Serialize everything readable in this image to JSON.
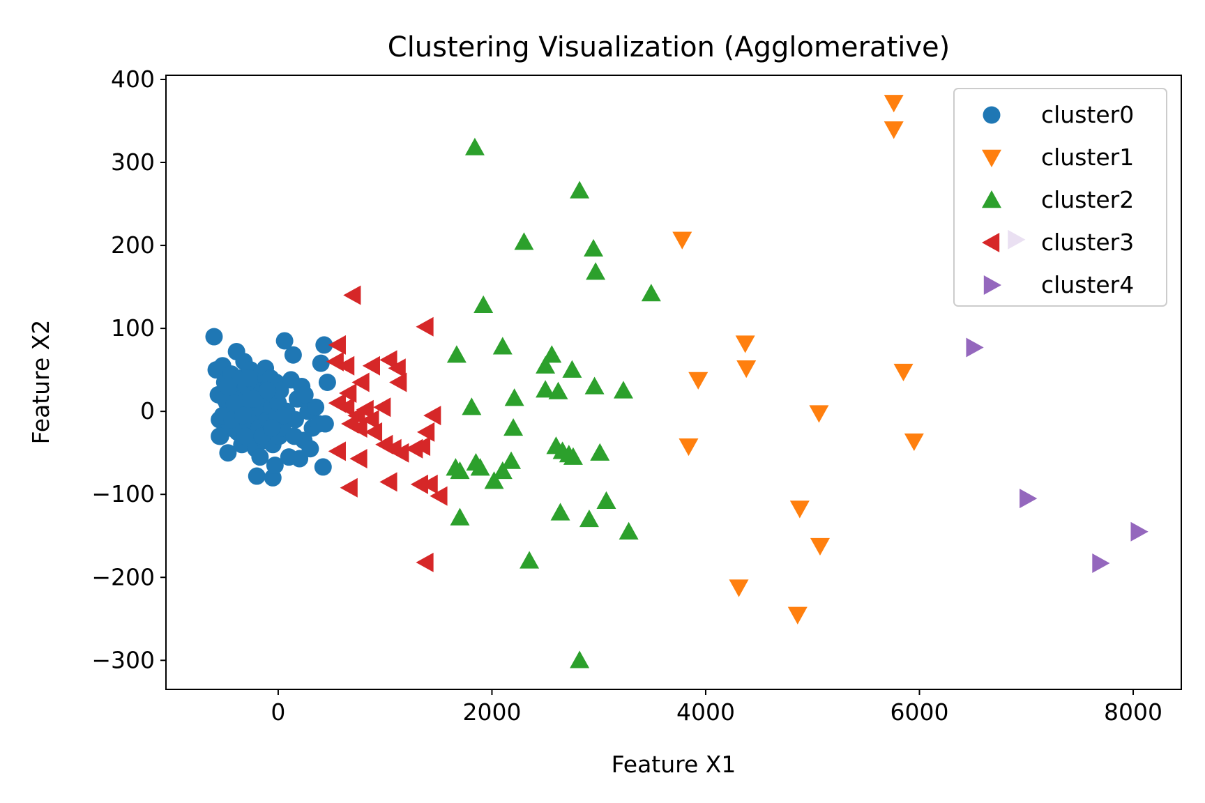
{
  "chart_data": {
    "type": "scatter",
    "title": "Clustering Visualization (Agglomerative)",
    "xlabel": "Feature X1",
    "ylabel": "Feature X2",
    "xlim": [
      -1050,
      8450
    ],
    "ylim": [
      -335,
      405
    ],
    "xticks": [
      0,
      2000,
      4000,
      6000,
      8000
    ],
    "xtick_labels": [
      "0",
      "2000",
      "4000",
      "6000",
      "8000"
    ],
    "yticks": [
      400,
      300,
      200,
      100,
      0,
      -100,
      -200,
      -300
    ],
    "ytick_labels": [
      "400",
      "300",
      "200",
      "100",
      "0",
      "−100",
      "−200",
      "−300"
    ],
    "grid": false,
    "legend_position": "top-right",
    "series": [
      {
        "name": "cluster0",
        "marker": "circle",
        "color": "#1f77b4",
        "points": [
          [
            -600,
            90
          ],
          [
            -580,
            50
          ],
          [
            -560,
            20
          ],
          [
            -550,
            -10
          ],
          [
            -540,
            -30
          ],
          [
            -520,
            55
          ],
          [
            -500,
            35
          ],
          [
            -480,
            10
          ],
          [
            -470,
            -50
          ],
          [
            -460,
            -20
          ],
          [
            -440,
            45
          ],
          [
            -420,
            25
          ],
          [
            -400,
            0
          ],
          [
            -390,
            72
          ],
          [
            -380,
            -25
          ],
          [
            -360,
            40
          ],
          [
            -350,
            15
          ],
          [
            -340,
            -40
          ],
          [
            -320,
            60
          ],
          [
            -300,
            30
          ],
          [
            -290,
            5
          ],
          [
            -280,
            -15
          ],
          [
            -260,
            50
          ],
          [
            -250,
            20
          ],
          [
            -240,
            -30
          ],
          [
            -220,
            -5
          ],
          [
            -210,
            -45
          ],
          [
            -200,
            35
          ],
          [
            -190,
            10
          ],
          [
            -180,
            -20
          ],
          [
            -170,
            -55
          ],
          [
            -160,
            45
          ],
          [
            -150,
            25
          ],
          [
            -140,
            0
          ],
          [
            -130,
            -35
          ],
          [
            -120,
            52
          ],
          [
            -110,
            15
          ],
          [
            -100,
            -10
          ],
          [
            -90,
            30
          ],
          [
            -80,
            -25
          ],
          [
            -70,
            40
          ],
          [
            -60,
            5
          ],
          [
            -50,
            -40
          ],
          [
            -40,
            20
          ],
          [
            -30,
            -15
          ],
          [
            -20,
            35
          ],
          [
            -10,
            -5
          ],
          [
            0,
            10
          ],
          [
            10,
            -30
          ],
          [
            20,
            25
          ],
          [
            40,
            -20
          ],
          [
            60,
            85
          ],
          [
            80,
            0
          ],
          [
            100,
            -55
          ],
          [
            120,
            38
          ],
          [
            140,
            68
          ],
          [
            160,
            -10
          ],
          [
            180,
            15
          ],
          [
            200,
            -57
          ],
          [
            220,
            30
          ],
          [
            240,
            -35
          ],
          [
            280,
            0
          ],
          [
            300,
            -45
          ],
          [
            320,
            -20
          ],
          [
            350,
            5
          ],
          [
            380,
            -15
          ],
          [
            400,
            58
          ],
          [
            420,
            -67
          ],
          [
            430,
            80
          ],
          [
            460,
            35
          ],
          [
            -200,
            -78
          ],
          [
            -50,
            -80
          ],
          [
            -30,
            -65
          ],
          [
            -550,
            -30
          ],
          [
            -520,
            -5
          ],
          [
            -500,
            15
          ],
          [
            -470,
            30
          ],
          [
            -430,
            -10
          ],
          [
            -410,
            10
          ],
          [
            -330,
            -5
          ],
          [
            -310,
            -30
          ],
          [
            -270,
            40
          ],
          [
            -230,
            15
          ],
          [
            -150,
            -30
          ],
          [
            -100,
            25
          ],
          [
            -60,
            -20
          ],
          [
            50,
            -5
          ],
          [
            150,
            -30
          ],
          [
            250,
            20
          ],
          [
            440,
            -15
          ]
        ]
      },
      {
        "name": "cluster1",
        "marker": "triangle-down",
        "color": "#ff7f0e",
        "points": [
          [
            5760,
            372
          ],
          [
            5760,
            340
          ],
          [
            3780,
            207
          ],
          [
            4370,
            82
          ],
          [
            4380,
            52
          ],
          [
            3930,
            38
          ],
          [
            5850,
            48
          ],
          [
            5060,
            -2
          ],
          [
            5950,
            -36
          ],
          [
            3840,
            -42
          ],
          [
            4880,
            -117
          ],
          [
            5070,
            -162
          ],
          [
            4310,
            -212
          ],
          [
            4860,
            -245
          ]
        ]
      },
      {
        "name": "cluster2",
        "marker": "triangle-up",
        "color": "#2ca02c",
        "points": [
          [
            1840,
            318
          ],
          [
            2820,
            266
          ],
          [
            2300,
            204
          ],
          [
            2950,
            196
          ],
          [
            2970,
            168
          ],
          [
            3490,
            142
          ],
          [
            1920,
            128
          ],
          [
            1670,
            68
          ],
          [
            2100,
            78
          ],
          [
            2560,
            68
          ],
          [
            2500,
            55
          ],
          [
            2750,
            50
          ],
          [
            2960,
            30
          ],
          [
            2500,
            26
          ],
          [
            2620,
            24
          ],
          [
            3230,
            25
          ],
          [
            2210,
            16
          ],
          [
            1810,
            5
          ],
          [
            2200,
            -20
          ],
          [
            2180,
            -60
          ],
          [
            2600,
            -42
          ],
          [
            2660,
            -48
          ],
          [
            2720,
            -52
          ],
          [
            2760,
            -55
          ],
          [
            3010,
            -50
          ],
          [
            1660,
            -68
          ],
          [
            1700,
            -72
          ],
          [
            1850,
            -62
          ],
          [
            1890,
            -68
          ],
          [
            2100,
            -72
          ],
          [
            2020,
            -84
          ],
          [
            3070,
            -108
          ],
          [
            1700,
            -128
          ],
          [
            2640,
            -122
          ],
          [
            2910,
            -130
          ],
          [
            3280,
            -145
          ],
          [
            2350,
            -180
          ],
          [
            2820,
            -300
          ]
        ]
      },
      {
        "name": "cluster3",
        "marker": "triangle-left",
        "color": "#d62728",
        "points": [
          [
            700,
            140
          ],
          [
            1380,
            102
          ],
          [
            560,
            80
          ],
          [
            540,
            60
          ],
          [
            640,
            55
          ],
          [
            880,
            55
          ],
          [
            1040,
            62
          ],
          [
            1120,
            52
          ],
          [
            1130,
            35
          ],
          [
            780,
            35
          ],
          [
            660,
            22
          ],
          [
            560,
            10
          ],
          [
            640,
            5
          ],
          [
            820,
            2
          ],
          [
            980,
            5
          ],
          [
            740,
            -5
          ],
          [
            870,
            -10
          ],
          [
            680,
            -15
          ],
          [
            760,
            -20
          ],
          [
            900,
            -25
          ],
          [
            1450,
            -5
          ],
          [
            1390,
            -25
          ],
          [
            1000,
            -40
          ],
          [
            1080,
            -45
          ],
          [
            1150,
            -50
          ],
          [
            1280,
            -45
          ],
          [
            1350,
            -42
          ],
          [
            560,
            -48
          ],
          [
            760,
            -57
          ],
          [
            1040,
            -85
          ],
          [
            1330,
            -88
          ],
          [
            1420,
            -88
          ],
          [
            1510,
            -102
          ],
          [
            670,
            -92
          ],
          [
            1380,
            -182
          ]
        ]
      },
      {
        "name": "cluster4",
        "marker": "triangle-right",
        "color": "#9467bd",
        "points": [
          [
            6900,
            207
          ],
          [
            6510,
            77
          ],
          [
            7010,
            -105
          ],
          [
            8050,
            -145
          ],
          [
            7690,
            -183
          ]
        ]
      }
    ]
  }
}
